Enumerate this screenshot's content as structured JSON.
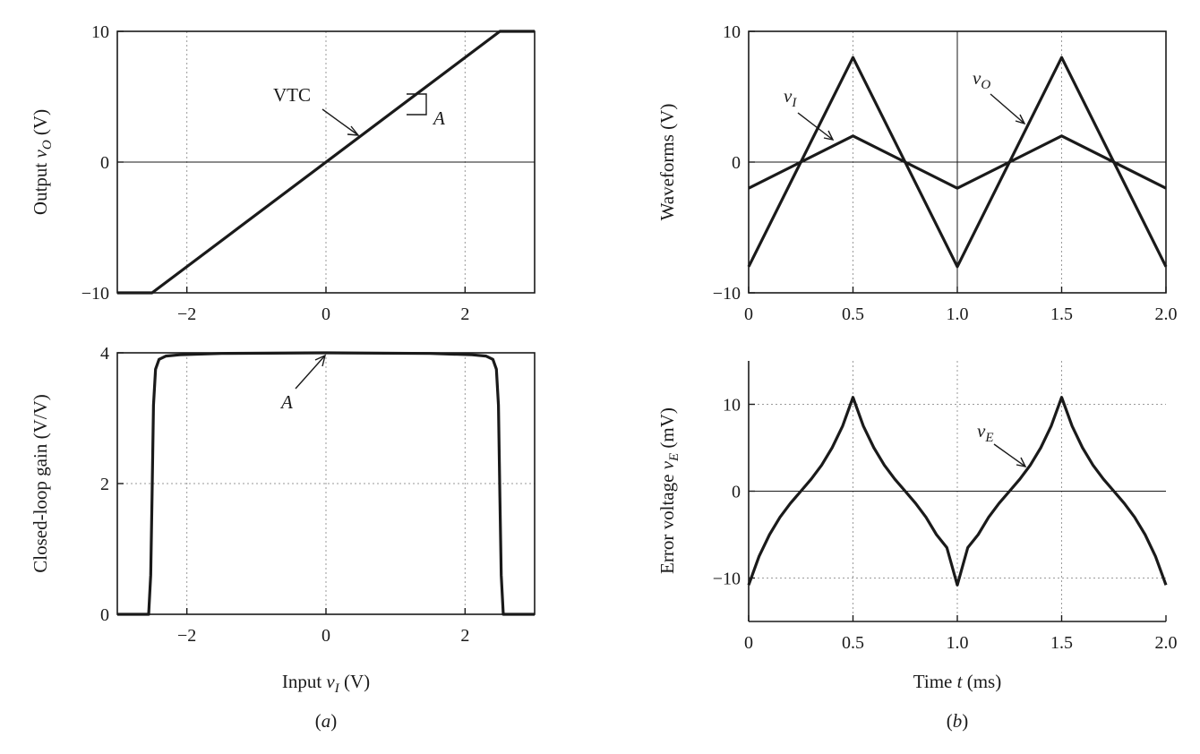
{
  "chart_data": [
    {
      "id": "vtc",
      "type": "line",
      "ylabel_main": "Output ",
      "ylabel_var": "v",
      "ylabel_sub": "O",
      "ylabel_unit": " (V)",
      "xlim": [
        -3,
        3
      ],
      "ylim": [
        -10,
        10
      ],
      "xticks": [
        -2,
        0,
        2
      ],
      "yticks": [
        -10,
        0,
        10
      ],
      "xtick_labels": [
        "−2",
        "0",
        "2"
      ],
      "ytick_labels": [
        "−10",
        "0",
        "10"
      ],
      "series": [
        {
          "x": [
            -3,
            -2.5,
            2.5,
            3
          ],
          "y": [
            -10,
            -10,
            10,
            10
          ]
        }
      ],
      "annotations": [
        {
          "text": "VTC",
          "x": 0.5,
          "y": 4.6
        },
        {
          "text": "A",
          "x": 1.5,
          "y": 6.5,
          "italic": true
        }
      ]
    },
    {
      "id": "gain",
      "type": "line",
      "xlabel_main": "Input ",
      "xlabel_var": "v",
      "xlabel_sub": "I",
      "xlabel_unit": " (V)",
      "ylabel": "Closed-loop gain (V/V)",
      "xlim": [
        -3,
        3
      ],
      "ylim": [
        0,
        4
      ],
      "xticks": [
        -2,
        0,
        2
      ],
      "yticks": [
        0,
        2,
        4
      ],
      "xtick_labels": [
        "−2",
        "0",
        "2"
      ],
      "ytick_labels": [
        "0",
        "2",
        "4"
      ],
      "series": [
        {
          "x": [
            -3,
            -2.55,
            -2.52,
            -2.5,
            -2.48,
            -2.45,
            -2.4,
            -2.3,
            -2.1,
            -1.5,
            0,
            1.5,
            2.1,
            2.3,
            2.4,
            2.45,
            2.48,
            2.5,
            2.52,
            2.55,
            3
          ],
          "y": [
            0,
            0,
            0.6,
            1.8,
            3.2,
            3.75,
            3.9,
            3.95,
            3.97,
            3.99,
            4.0,
            3.99,
            3.97,
            3.95,
            3.9,
            3.75,
            3.2,
            1.8,
            0.6,
            0,
            0
          ]
        }
      ],
      "annotations": [
        {
          "text": "A",
          "x": -0.5,
          "y": 3.35,
          "italic": true
        }
      ]
    },
    {
      "id": "waveforms",
      "type": "line",
      "ylabel": "Waveforms (V)",
      "xlim": [
        0,
        2
      ],
      "ylim": [
        -10,
        10
      ],
      "xticks": [
        0,
        0.5,
        1.0,
        1.5,
        2.0
      ],
      "yticks": [
        -10,
        0,
        10
      ],
      "xtick_labels": [
        "0",
        "0.5",
        "1.0",
        "1.5",
        "2.0"
      ],
      "ytick_labels": [
        "−10",
        "0",
        "10"
      ],
      "series": [
        {
          "name_var": "v",
          "name_sub": "I",
          "x": [
            0,
            0.5,
            1.0,
            1.5,
            2.0
          ],
          "y": [
            -2,
            2,
            -2,
            2,
            -2
          ]
        },
        {
          "name_var": "v",
          "name_sub": "O",
          "x": [
            0,
            0.5,
            1.0,
            1.5,
            2.0
          ],
          "y": [
            -8,
            8,
            -8,
            8,
            -8
          ]
        }
      ]
    },
    {
      "id": "error",
      "type": "line",
      "xlabel_main": "Time ",
      "xlabel_var": "t",
      "xlabel_unit": " (ms)",
      "ylabel_main": "Error voltage ",
      "ylabel_var": "v",
      "ylabel_sub": "E",
      "ylabel_unit": " (mV)",
      "xlim": [
        0,
        2
      ],
      "ylim": [
        -15,
        15
      ],
      "xticks": [
        0,
        0.5,
        1.0,
        1.5,
        2.0
      ],
      "yticks": [
        -10,
        0,
        10
      ],
      "xtick_labels": [
        "0",
        "0.5",
        "1.0",
        "1.5",
        "2.0"
      ],
      "ytick_labels": [
        "−10",
        "0",
        "10"
      ],
      "series": [
        {
          "name_var": "v",
          "name_sub": "E",
          "x": [
            0,
            0.05,
            0.1,
            0.15,
            0.2,
            0.25,
            0.3,
            0.35,
            0.4,
            0.45,
            0.5,
            0.55,
            0.6,
            0.65,
            0.7,
            0.75,
            0.8,
            0.85,
            0.9,
            0.95,
            1.0,
            1.05,
            1.1,
            1.15,
            1.2,
            1.25,
            1.3,
            1.35,
            1.4,
            1.45,
            1.5,
            1.55,
            1.6,
            1.65,
            1.7,
            1.75,
            1.8,
            1.85,
            1.9,
            1.95,
            2.0
          ],
          "y": [
            -10.8,
            -7.5,
            -5.0,
            -3.0,
            -1.4,
            0,
            1.4,
            3.0,
            5.0,
            7.5,
            10.8,
            7.5,
            5.0,
            3.0,
            1.4,
            0,
            -1.4,
            -3.0,
            -5.0,
            -6.5,
            -10.8,
            -6.5,
            -5.0,
            -3.0,
            -1.4,
            0,
            1.4,
            3.0,
            5.0,
            7.5,
            10.8,
            7.5,
            5.0,
            3.0,
            1.4,
            0,
            -1.4,
            -3.0,
            -5.0,
            -7.5,
            -10.8
          ]
        }
      ]
    }
  ],
  "captions": {
    "a": "a",
    "b": "b"
  }
}
